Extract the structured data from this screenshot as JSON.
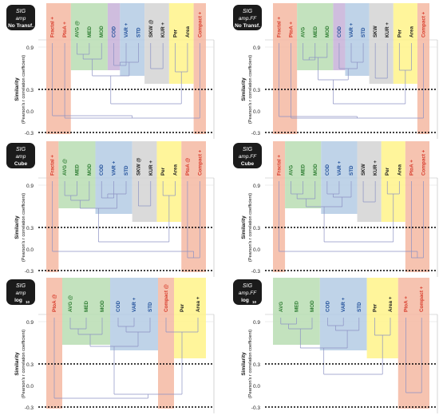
{
  "y_axis": {
    "title_line1": "Similarity",
    "title_line2": "(Pearson's r correlation coefficient)",
    "ticks": [
      "0.9",
      "0.3",
      "0.0",
      "-0.3"
    ]
  },
  "colors": {
    "orange": "#f4b8a2",
    "green": "#b8ddb3",
    "purple": "#c7b2d8",
    "blue": "#b4cbe4",
    "gray": "#d4d4d4",
    "yellow": "#fff38a",
    "tree": "#8c92c4",
    "label_red": "#d73a2a",
    "label_green": "#2e7d32",
    "label_blue": "#1f4e99",
    "label_dark": "#222222"
  },
  "panels": [
    {
      "id": "amp-no-transf",
      "badge": [
        "SIG",
        "amp",
        "No Transf."
      ],
      "items": [
        {
          "label": "Fractal",
          "suffix": "+",
          "group": "orange",
          "text": "label_red"
        },
        {
          "label": "PtoA",
          "suffix": "+",
          "group": "orange",
          "text": "label_red"
        },
        {
          "label": "AVG",
          "suffix": "@",
          "group": "green",
          "text": "label_green"
        },
        {
          "label": "MED",
          "suffix": "",
          "group": "green",
          "text": "label_green"
        },
        {
          "label": "MOD",
          "suffix": "",
          "group": "green",
          "text": "label_green"
        },
        {
          "label": "COD",
          "suffix": "",
          "group": "purple",
          "text": "label_blue"
        },
        {
          "label": "VAR",
          "suffix": "+",
          "group": "blue",
          "text": "label_blue"
        },
        {
          "label": "STD",
          "suffix": "",
          "group": "blue",
          "text": "label_blue"
        },
        {
          "label": "SKW",
          "suffix": "@",
          "group": "gray",
          "text": "label_dark"
        },
        {
          "label": "KUR",
          "suffix": "+",
          "group": "gray",
          "text": "label_dark"
        },
        {
          "label": "Per",
          "suffix": "",
          "group": "yellow",
          "text": "label_dark"
        },
        {
          "label": "Area",
          "suffix": "",
          "group": "yellow",
          "text": "label_dark"
        },
        {
          "label": "Compact",
          "suffix": "+",
          "group": "orange",
          "text": "label_red"
        }
      ]
    },
    {
      "id": "amp-ff-no-transf",
      "badge": [
        "SIG",
        "amp.FF",
        "No Transf."
      ],
      "items": [
        {
          "label": "Fractal",
          "suffix": "+",
          "group": "orange",
          "text": "label_red"
        },
        {
          "label": "PtoA",
          "suffix": "+",
          "group": "orange",
          "text": "label_red"
        },
        {
          "label": "AVG",
          "suffix": "",
          "group": "green",
          "text": "label_green"
        },
        {
          "label": "MED",
          "suffix": "",
          "group": "green",
          "text": "label_green"
        },
        {
          "label": "MOD",
          "suffix": "",
          "group": "green",
          "text": "label_green"
        },
        {
          "label": "COD",
          "suffix": "",
          "group": "purple",
          "text": "label_blue"
        },
        {
          "label": "VAR",
          "suffix": "+",
          "group": "blue",
          "text": "label_blue"
        },
        {
          "label": "STD",
          "suffix": "",
          "group": "blue",
          "text": "label_blue"
        },
        {
          "label": "SKW",
          "suffix": "",
          "group": "gray",
          "text": "label_dark"
        },
        {
          "label": "KUR",
          "suffix": "+",
          "group": "gray",
          "text": "label_dark"
        },
        {
          "label": "Per",
          "suffix": "",
          "group": "yellow",
          "text": "label_dark"
        },
        {
          "label": "Area",
          "suffix": "",
          "group": "yellow",
          "text": "label_dark"
        },
        {
          "label": "Compact",
          "suffix": "+",
          "group": "orange",
          "text": "label_red"
        }
      ]
    },
    {
      "id": "amp-cube",
      "badge": [
        "SIG",
        "amp",
        "Cube"
      ],
      "items": [
        {
          "label": "Fractal",
          "suffix": "+",
          "group": "orange",
          "text": "label_red"
        },
        {
          "label": "AVG",
          "suffix": "@",
          "group": "green",
          "text": "label_green"
        },
        {
          "label": "MED",
          "suffix": "",
          "group": "green",
          "text": "label_green"
        },
        {
          "label": "MOD",
          "suffix": "",
          "group": "green",
          "text": "label_green"
        },
        {
          "label": "COD",
          "suffix": "",
          "group": "blue",
          "text": "label_blue"
        },
        {
          "label": "VAR",
          "suffix": "+",
          "group": "blue",
          "text": "label_blue"
        },
        {
          "label": "STD",
          "suffix": "",
          "group": "blue",
          "text": "label_blue"
        },
        {
          "label": "SKW",
          "suffix": "@",
          "group": "gray",
          "text": "label_dark"
        },
        {
          "label": "KUR",
          "suffix": "+",
          "group": "gray",
          "text": "label_dark"
        },
        {
          "label": "Per",
          "suffix": "",
          "group": "yellow",
          "text": "label_dark"
        },
        {
          "label": "Area",
          "suffix": "",
          "group": "yellow",
          "text": "label_dark"
        },
        {
          "label": "PtoA",
          "suffix": "@",
          "group": "orange",
          "text": "label_red"
        },
        {
          "label": "Compact",
          "suffix": "+",
          "group": "orange",
          "text": "label_red"
        }
      ]
    },
    {
      "id": "amp-ff-cube",
      "badge": [
        "SIG",
        "amp.FF",
        "Cube"
      ],
      "items": [
        {
          "label": "Fractal",
          "suffix": "+",
          "group": "orange",
          "text": "label_red"
        },
        {
          "label": "AVG",
          "suffix": "",
          "group": "green",
          "text": "label_green"
        },
        {
          "label": "MED",
          "suffix": "",
          "group": "green",
          "text": "label_green"
        },
        {
          "label": "MOD",
          "suffix": "",
          "group": "green",
          "text": "label_green"
        },
        {
          "label": "COD",
          "suffix": "",
          "group": "blue",
          "text": "label_blue"
        },
        {
          "label": "VAR",
          "suffix": "+",
          "group": "blue",
          "text": "label_blue"
        },
        {
          "label": "STD",
          "suffix": "",
          "group": "blue",
          "text": "label_blue"
        },
        {
          "label": "SKW",
          "suffix": "",
          "group": "gray",
          "text": "label_dark"
        },
        {
          "label": "KUR",
          "suffix": "+",
          "group": "gray",
          "text": "label_dark"
        },
        {
          "label": "Per",
          "suffix": "",
          "group": "yellow",
          "text": "label_dark"
        },
        {
          "label": "Area",
          "suffix": "",
          "group": "yellow",
          "text": "label_dark"
        },
        {
          "label": "PtoA",
          "suffix": "+",
          "group": "orange",
          "text": "label_red"
        },
        {
          "label": "Compact",
          "suffix": "+",
          "group": "orange",
          "text": "label_red"
        }
      ]
    },
    {
      "id": "amp-log10",
      "badge": [
        "SIG",
        "amp",
        "log10"
      ],
      "items": [
        {
          "label": "PtoA",
          "suffix": "@",
          "group": "orange",
          "text": "label_red"
        },
        {
          "label": "AVG",
          "suffix": "@",
          "group": "green",
          "text": "label_green"
        },
        {
          "label": "MED",
          "suffix": "",
          "group": "green",
          "text": "label_green"
        },
        {
          "label": "MOD",
          "suffix": "",
          "group": "green",
          "text": "label_green"
        },
        {
          "label": "COD",
          "suffix": "",
          "group": "blue",
          "text": "label_blue"
        },
        {
          "label": "VAR",
          "suffix": "+",
          "group": "blue",
          "text": "label_blue"
        },
        {
          "label": "STD",
          "suffix": "",
          "group": "blue",
          "text": "label_blue"
        },
        {
          "label": "Compact",
          "suffix": "@",
          "group": "orange",
          "text": "label_red"
        },
        {
          "label": "Per",
          "suffix": "",
          "group": "yellow",
          "text": "label_dark"
        },
        {
          "label": "Area",
          "suffix": "+",
          "group": "yellow",
          "text": "label_dark"
        }
      ]
    },
    {
      "id": "amp-ff-log10",
      "badge": [
        "SIG",
        "amp.FF",
        "log10"
      ],
      "items": [
        {
          "label": "AVG",
          "suffix": "",
          "group": "green",
          "text": "label_green"
        },
        {
          "label": "MED",
          "suffix": "",
          "group": "green",
          "text": "label_green"
        },
        {
          "label": "MOD",
          "suffix": "",
          "group": "green",
          "text": "label_green"
        },
        {
          "label": "COD",
          "suffix": "",
          "group": "blue",
          "text": "label_blue"
        },
        {
          "label": "VAR",
          "suffix": "+",
          "group": "blue",
          "text": "label_blue"
        },
        {
          "label": "STD",
          "suffix": "",
          "group": "blue",
          "text": "label_blue"
        },
        {
          "label": "Per",
          "suffix": "",
          "group": "yellow",
          "text": "label_dark"
        },
        {
          "label": "Area",
          "suffix": "+",
          "group": "yellow",
          "text": "label_dark"
        },
        {
          "label": "PtoA",
          "suffix": "+",
          "group": "orange",
          "text": "label_red"
        },
        {
          "label": "Compact",
          "suffix": "+",
          "group": "orange",
          "text": "label_red"
        }
      ]
    }
  ]
}
